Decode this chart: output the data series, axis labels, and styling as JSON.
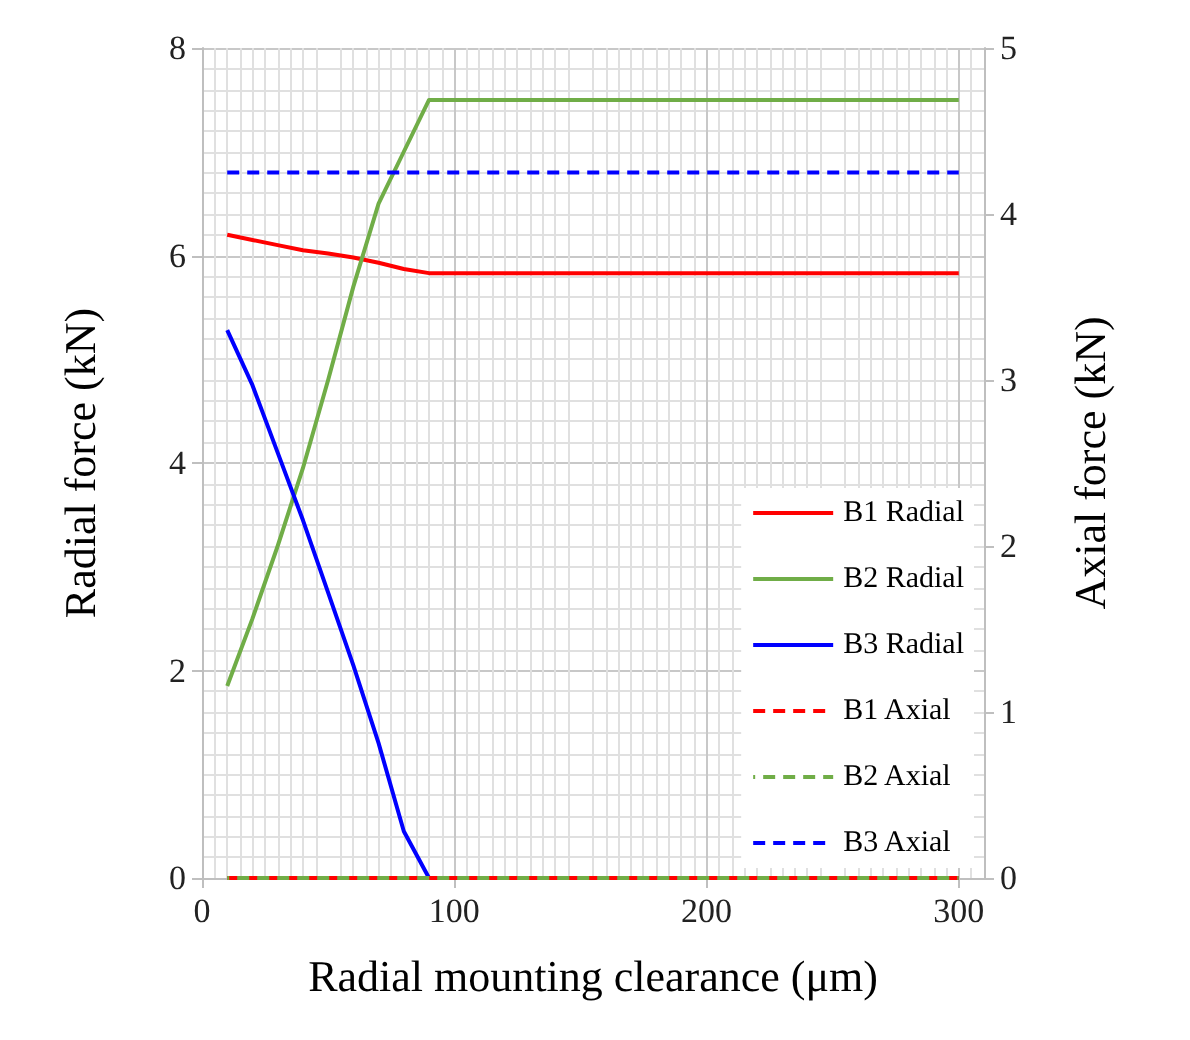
{
  "chart_data": {
    "type": "line",
    "xlabel": "Radial mounting clearance (μm)",
    "ylabel": "Radial force (kN)",
    "y2label": "Axial force (kN)",
    "x": [
      10,
      20,
      30,
      40,
      50,
      60,
      70,
      80,
      90,
      300
    ],
    "series": [
      {
        "name": "B1 Radial",
        "color": "#ff0000",
        "values": [
          6.2,
          6.15,
          6.1,
          6.05,
          6.02,
          5.98,
          5.93,
          5.87,
          5.83,
          5.83
        ]
      },
      {
        "name": "B2 Radial",
        "color": "#70ad47",
        "values": [
          1.85,
          2.5,
          3.2,
          3.95,
          4.8,
          5.7,
          6.5,
          7.0,
          7.5,
          7.5
        ]
      },
      {
        "name": "B3 Radial",
        "color": "#0000ff",
        "values": [
          5.28,
          4.75,
          4.1,
          3.45,
          2.75,
          2.05,
          1.3,
          0.45,
          0,
          0
        ]
      },
      {
        "name": "B1 Axial",
        "color": "#ff0000",
        "axis": "y2",
        "line_style": "dashed",
        "values": [
          0,
          0,
          0,
          0,
          0,
          0,
          0,
          0,
          0,
          0
        ]
      },
      {
        "name": "B2 Axial",
        "color": "#70ad47",
        "axis": "y2",
        "line_style": "dashed",
        "values": [
          0,
          0,
          0,
          0,
          0,
          0,
          0,
          0,
          0,
          0
        ]
      },
      {
        "name": "B3 Axial",
        "color": "#0000ff",
        "axis": "y2",
        "line_style": "dashed",
        "values": [
          4.25,
          4.25,
          4.25,
          4.25,
          4.25,
          4.25,
          4.25,
          4.25,
          4.25,
          4.25
        ]
      }
    ],
    "xlim": [
      0,
      310
    ],
    "xticks": [
      0,
      100,
      200,
      300
    ],
    "ylim": [
      0,
      8
    ],
    "yticks": [
      0,
      2,
      4,
      6,
      8
    ],
    "y2lim": [
      0,
      5
    ],
    "y2ticks": [
      0,
      1,
      2,
      3,
      4,
      5
    ],
    "grid": true,
    "legend": "bottom right",
    "marker": "none",
    "line_style": "solid"
  }
}
